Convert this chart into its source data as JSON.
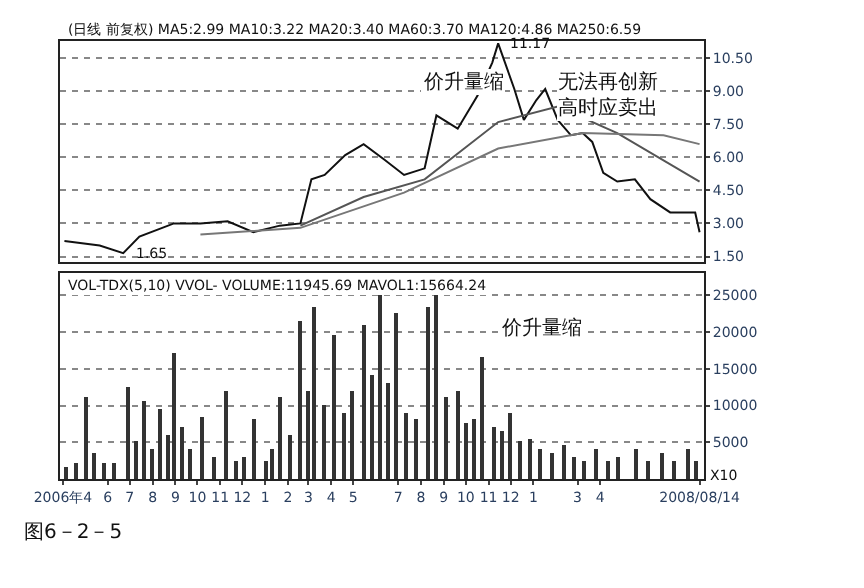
{
  "chart_data": [
    {
      "type": "line",
      "tick_labels": "y",
      "grid": "y",
      "marker": "none",
      "line_style": "solid",
      "annotations": [
        "(日线 前复权) MA5:2.99 MA10:3.22 MA20:3.40 MA60:3.70 MA120:4.86 MA250:6.59",
        "价升量缩",
        "无法再创新高时应卖出",
        {
          "text": "11.17",
          "x": "2007-11-14",
          "y": 11.17
        },
        {
          "text": "1.65",
          "x": "2006-06-22",
          "y": 1.65
        }
      ],
      "xlim": [
        "2006-03-28",
        "2008-08-20"
      ],
      "ylim": [
        1.25,
        11.3
      ],
      "yticks": [
        {
          "value": 1.5,
          "label": "1.50"
        },
        {
          "value": 3,
          "label": "3.00"
        },
        {
          "value": 4.5,
          "label": "4.50"
        },
        {
          "value": 6,
          "label": "6.00"
        },
        {
          "value": 7.5,
          "label": "7.50"
        },
        {
          "value": 9,
          "label": "9.00"
        },
        {
          "value": 10.5,
          "label": "10.50"
        }
      ],
      "series": [
        {
          "color": "#111111",
          "x": [
            "2006-04-03",
            "2006-05-21",
            "2006-06-22",
            "2006-07-14",
            "2006-08-30",
            "2006-10-05",
            "2006-11-11",
            "2006-12-16",
            "2007-01-21",
            "2007-02-18",
            "2007-03-05",
            "2007-03-23",
            "2007-04-20",
            "2007-05-15",
            "2007-06-12",
            "2007-07-09",
            "2007-08-06",
            "2007-08-22",
            "2007-09-20",
            "2007-10-17",
            "2007-11-06",
            "2007-11-14",
            "2007-12-06",
            "2007-12-19",
            "2008-01-05",
            "2008-01-17",
            "2008-02-03",
            "2008-02-21",
            "2008-03-08",
            "2008-03-21",
            "2008-04-05",
            "2008-04-24",
            "2008-05-18",
            "2008-06-08",
            "2008-07-05",
            "2008-08-08",
            "2008-08-14"
          ],
          "values": [
            2.2,
            2.0,
            1.65,
            2.4,
            3.0,
            3.0,
            3.1,
            2.6,
            2.9,
            3.0,
            5.0,
            5.2,
            6.1,
            6.6,
            5.9,
            5.2,
            5.5,
            7.9,
            7.3,
            8.8,
            10.3,
            11.17,
            9.1,
            7.7,
            8.6,
            9.1,
            7.7,
            7.0,
            7.1,
            6.7,
            5.3,
            4.9,
            5.0,
            4.1,
            3.5,
            3.5,
            2.6
          ]
        },
        {
          "color": "#555555",
          "x": [
            "2007-02-18",
            "2007-05-15",
            "2007-08-06",
            "2007-11-14",
            "2008-02-03",
            "2008-04-24",
            "2008-08-14"
          ],
          "values": [
            2.9,
            4.2,
            5.0,
            7.6,
            8.3,
            7.1,
            4.9
          ]
        },
        {
          "color": "#777777",
          "x": [
            "2006-10-05",
            "2007-02-18",
            "2007-07-09",
            "2007-11-14",
            "2008-03-08",
            "2008-06-26",
            "2008-08-14"
          ],
          "values": [
            2.5,
            2.8,
            4.4,
            6.4,
            7.1,
            7.0,
            6.6
          ]
        }
      ]
    },
    {
      "type": "bar",
      "grid": "y",
      "annotations": [
        "VOL-TDX(5,10) VVOL- VOLUME:11945.69 MAVOL1:15664.24",
        "价升量缩",
        "X10",
        "图6－2－5"
      ],
      "xlim": [
        "2006-03-28",
        "2008-08-20"
      ],
      "ylim": [
        0,
        28000
      ],
      "xticks": [
        {
          "value": "2006-04-01",
          "label": "2006年4"
        },
        {
          "value": "2006-06-01",
          "label": "6"
        },
        {
          "value": "2006-07-01",
          "label": "7"
        },
        {
          "value": "2006-08-01",
          "label": "8"
        },
        {
          "value": "2006-09-01",
          "label": "9"
        },
        {
          "value": "2006-10-01",
          "label": "10"
        },
        {
          "value": "2006-11-01",
          "label": "11"
        },
        {
          "value": "2006-12-01",
          "label": "12"
        },
        {
          "value": "2007-01-01",
          "label": "1"
        },
        {
          "value": "2007-02-01",
          "label": "2"
        },
        {
          "value": "2007-03-01",
          "label": "3"
        },
        {
          "value": "2007-04-01",
          "label": "4"
        },
        {
          "value": "2007-05-01",
          "label": "5"
        },
        {
          "value": "2007-07-01",
          "label": "7"
        },
        {
          "value": "2007-08-01",
          "label": "8"
        },
        {
          "value": "2007-09-01",
          "label": "9"
        },
        {
          "value": "2007-10-01",
          "label": "10"
        },
        {
          "value": "2007-11-01",
          "label": "11"
        },
        {
          "value": "2007-12-01",
          "label": "12"
        },
        {
          "value": "2008-01-01",
          "label": "1"
        },
        {
          "value": "2008-03-01",
          "label": "3"
        },
        {
          "value": "2008-04-01",
          "label": "4"
        },
        {
          "value": "2008-08-14",
          "label": "2008/08/14"
        }
      ],
      "yticks": [
        5000,
        10000,
        15000,
        20000,
        25000
      ],
      "series": [
        {
          "color": "#333333",
          "x": [
            "2006-04-06",
            "2006-04-20",
            "2006-05-02",
            "2006-05-14",
            "2006-05-28",
            "2006-06-11",
            "2006-06-30",
            "2006-07-11",
            "2006-07-22",
            "2006-08-01",
            "2006-08-11",
            "2006-08-22",
            "2006-09-01",
            "2006-09-11",
            "2006-09-22",
            "2006-10-09",
            "2006-10-24",
            "2006-11-10",
            "2006-11-24",
            "2006-12-05",
            "2006-12-18",
            "2007-01-02",
            "2007-01-10",
            "2007-01-21",
            "2007-02-04",
            "2007-02-17",
            "2007-02-28",
            "2007-03-09",
            "2007-03-23",
            "2007-04-06",
            "2007-04-18",
            "2007-05-01",
            "2007-05-16",
            "2007-05-26",
            "2007-06-06",
            "2007-06-17",
            "2007-06-30",
            "2007-07-12",
            "2007-07-26",
            "2007-08-10",
            "2007-08-23",
            "2007-09-04",
            "2007-09-20",
            "2007-10-03",
            "2007-10-14",
            "2007-10-25",
            "2007-11-09",
            "2007-11-20",
            "2007-12-01",
            "2007-12-14",
            "2007-12-27",
            "2008-01-11",
            "2008-01-27",
            "2008-02-12",
            "2008-02-26",
            "2008-03-11",
            "2008-03-26",
            "2008-04-11",
            "2008-04-27",
            "2008-05-19",
            "2008-06-05",
            "2008-06-25",
            "2008-07-10",
            "2008-07-30",
            "2008-08-10"
          ],
          "values": [
            1500,
            2000,
            11000,
            3500,
            2000,
            2000,
            12500,
            5000,
            10500,
            4000,
            9500,
            6000,
            17000,
            7000,
            4000,
            8500,
            3000,
            12000,
            2500,
            3000,
            8000,
            2500,
            4000,
            11000,
            6000,
            21500,
            12000,
            23500,
            10000,
            19500,
            9000,
            12000,
            21000,
            14000,
            25000,
            13000,
            22500,
            9000,
            8000,
            23500,
            25000,
            11000,
            12000,
            7500,
            8000,
            16500,
            7000,
            6500,
            9000,
            5000,
            5500,
            4000,
            3500,
            4500,
            3000,
            2500,
            4000,
            2500,
            3000,
            4000,
            2500,
            3500,
            2500,
            4000,
            2500
          ]
        }
      ]
    }
  ]
}
